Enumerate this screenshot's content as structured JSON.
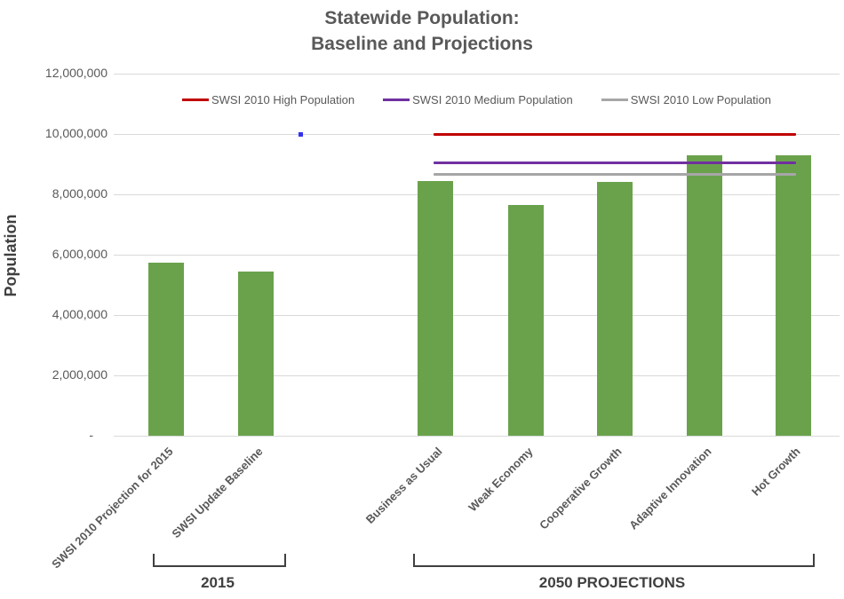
{
  "title": {
    "line1": "Statewide Population:",
    "line2": "Baseline and Projections"
  },
  "y_axis": {
    "label": "Population",
    "tick_labels": [
      "12,000,000",
      "10,000,000",
      "8,000,000",
      "6,000,000",
      "4,000,000",
      "2,000,000",
      "-"
    ],
    "tick_values": [
      12000000,
      10000000,
      8000000,
      6000000,
      4000000,
      2000000,
      0
    ]
  },
  "legend": {
    "items": [
      {
        "label": "SWSI 2010 High Population",
        "color": "#C00000"
      },
      {
        "label": "SWSI 2010 Medium Population",
        "color": "#7030A0"
      },
      {
        "label": "SWSI 2010 Low Population",
        "color": "#A6A6A6"
      }
    ]
  },
  "groups": [
    {
      "label": "2015",
      "category_indices": [
        0,
        1
      ]
    },
    {
      "label": "2050 PROJECTIONS",
      "category_indices": [
        2,
        3,
        4,
        5,
        6
      ]
    }
  ],
  "chart_data": {
    "type": "bar",
    "title": "Statewide Population: Baseline and Projections",
    "xlabel": "",
    "ylabel": "Population",
    "ylim": [
      0,
      12000000
    ],
    "grid": true,
    "gridline_interval": 2000000,
    "legend_position": "top",
    "categories": [
      "SWSI 2010 Projection for 2015",
      "SWSI Update Baseline",
      "Business as Usual",
      "Weak Economy",
      "Cooperative Growth",
      "Adaptive Innovation",
      "Hot Growth"
    ],
    "bar_series": {
      "name": "Population",
      "color": "#6AA24C",
      "values": [
        5750000,
        5450000,
        8450000,
        7650000,
        8400000,
        9300000,
        9300000
      ]
    },
    "line_series": [
      {
        "name": "SWSI 2010 High Population",
        "color": "#C00000",
        "value": 10000000,
        "span_categories": [
          "Business as Usual",
          "Hot Growth"
        ]
      },
      {
        "name": "SWSI 2010 Medium Population",
        "color": "#7030A0",
        "value": 9050000,
        "span_categories": [
          "Business as Usual",
          "Hot Growth"
        ]
      },
      {
        "name": "SWSI 2010 Low Population",
        "color": "#A6A6A6",
        "value": 8650000,
        "span_categories": [
          "Business as Usual",
          "Hot Growth"
        ]
      }
    ],
    "stray_point": {
      "color": "#3333F0",
      "value": 10000000,
      "between_categories": [
        "SWSI Update Baseline",
        "Business as Usual"
      ]
    }
  }
}
